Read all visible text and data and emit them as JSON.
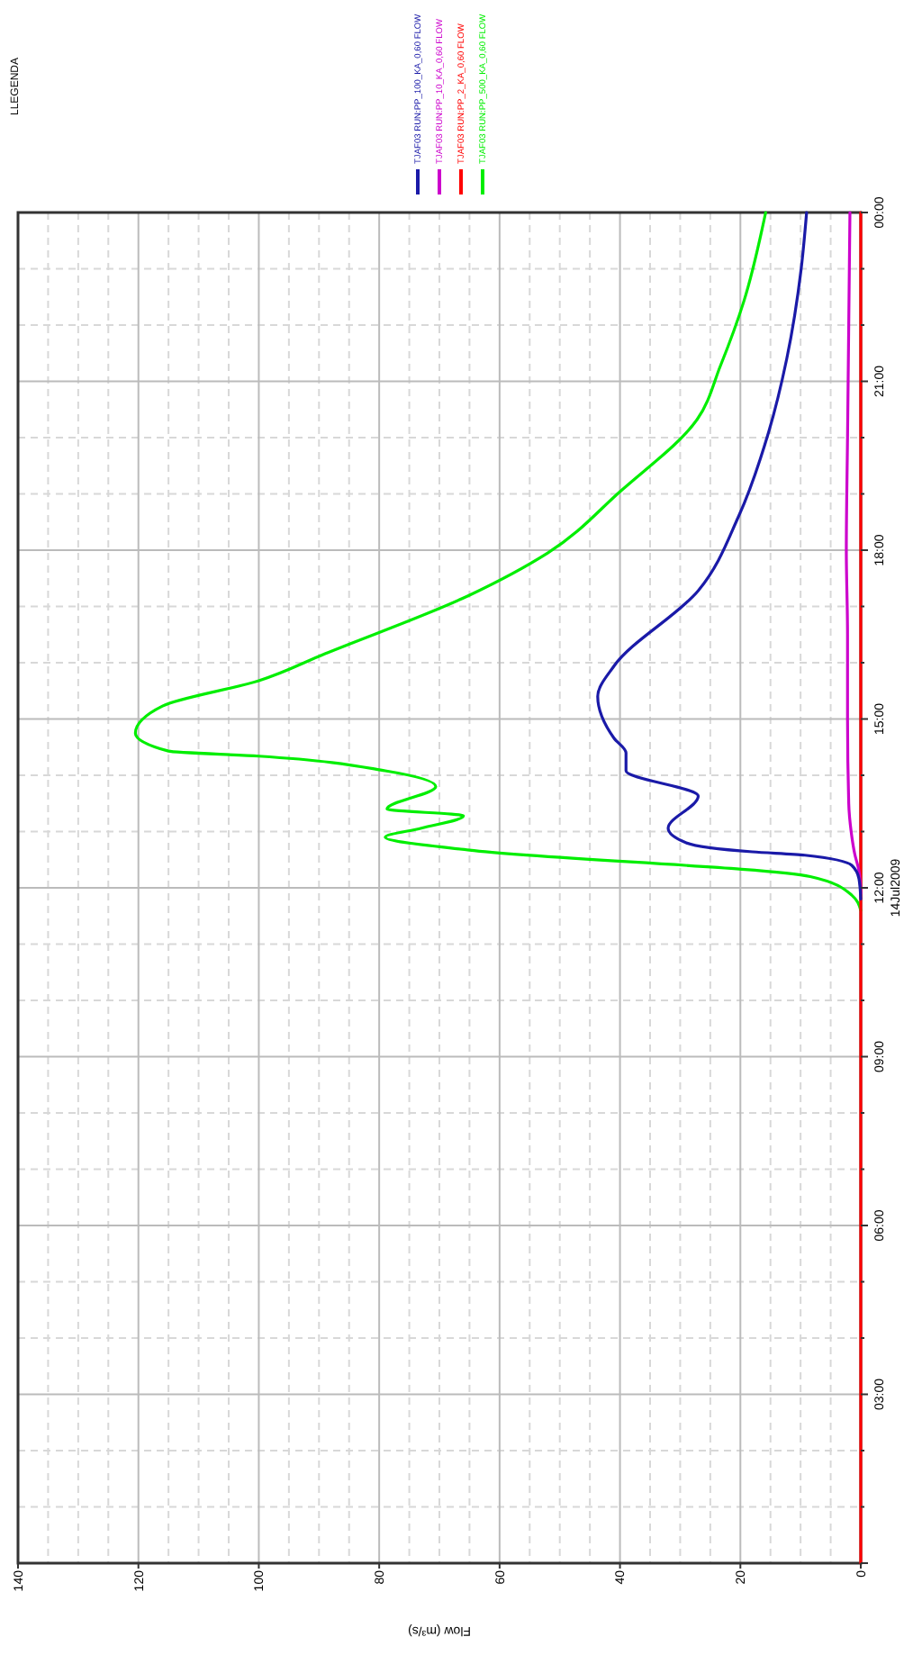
{
  "chart_data": {
    "type": "line",
    "xlabel": "Flow (m³/s)",
    "legend_title": "LLEGENDA",
    "legend": "top left",
    "grid": true,
    "marker": "none",
    "line_style": "solid",
    "xlim": [
      140,
      0
    ],
    "xticks": [
      140,
      120,
      100,
      80,
      60,
      40,
      20,
      0
    ],
    "ylim": [
      0,
      24
    ],
    "yticks": [
      {
        "value": 0,
        "label": null
      },
      {
        "value": 3,
        "label": "03:00"
      },
      {
        "value": 6,
        "label": "06:00"
      },
      {
        "value": 9,
        "label": "09:00"
      },
      {
        "value": 12,
        "label": "12:00"
      },
      {
        "value": 15,
        "label": "15:00"
      },
      {
        "value": 18,
        "label": "18:00"
      },
      {
        "value": 21,
        "label": "21:00"
      },
      {
        "value": 24,
        "label": "00:00"
      }
    ],
    "annotations": [
      "14Jul2009"
    ],
    "series": [
      {
        "name": "TJAF03 RUN:PP_100_KA_0,60 FLOW",
        "color": "#1a1aa8",
        "values": [
          11.8,
          12.16,
          12.4,
          12.58,
          12.64,
          12.8,
          13.06,
          13.63,
          14.08,
          14.4,
          14.66,
          15.4,
          15.94,
          17.28,
          18.6,
          20.1,
          21.4,
          23.0,
          24
        ],
        "x": [
          0,
          0.3,
          1.5,
          9.3,
          18,
          29,
          32,
          27,
          39,
          39,
          41,
          43.7,
          41,
          27,
          20.3,
          15.3,
          12.3,
          9.9,
          9.0
        ]
      },
      {
        "name": "TJAF03 RUN:PP_10_KA_0,60 FLOW",
        "color": "#cc00cc",
        "values": [
          11.9,
          12.3,
          12.6,
          13.0,
          13.5,
          15,
          16.5,
          18,
          20,
          22,
          24
        ],
        "x": [
          0,
          0.3,
          1,
          1.6,
          2,
          2.2,
          2.2,
          2.4,
          2.2,
          2,
          1.8
        ]
      },
      {
        "name": "TJAF03 RUN:PP_2_KA_0,60 FLOW",
        "color": "#ff0000",
        "values": [
          0,
          6,
          24
        ],
        "x": [
          0,
          0,
          0
        ]
      },
      {
        "name": "TJAF03 RUN:PP_500_KA_0,60 FLOW",
        "color": "#00ee00",
        "values": [
          11.6,
          11.87,
          12.2,
          12.67,
          12.9,
          13.06,
          13.28,
          13.4,
          13.8,
          14.08,
          14.34,
          14.43,
          14.75,
          15.23,
          15.68,
          16.16,
          17.2,
          17.95,
          19.04,
          20.32,
          21.28,
          22.43,
          24
        ],
        "x": [
          0,
          1.5,
          8.4,
          65,
          79,
          73,
          66,
          78.7,
          70.6,
          79,
          100,
          115,
          120.5,
          116,
          100,
          89,
          65,
          52,
          40,
          27.2,
          23.3,
          19.4,
          15.8
        ]
      }
    ]
  }
}
